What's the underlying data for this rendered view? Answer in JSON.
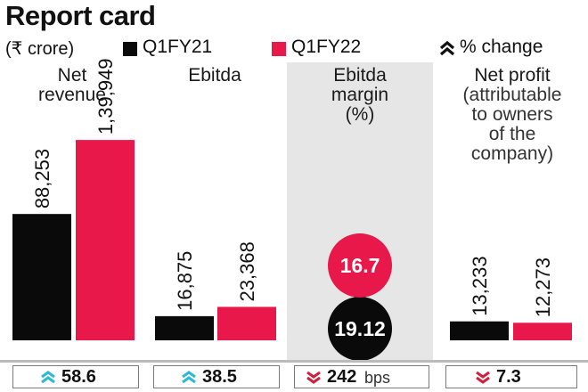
{
  "title": "Report card",
  "legend": {
    "unit": "(₹ crore)",
    "series_a": "Q1FY21",
    "series_b": "Q1FY22",
    "change": "% change"
  },
  "colors": {
    "series_a": "#0a0a0a",
    "series_b": "#e8184b",
    "up": "#2bbad0",
    "down": "#d21f3c",
    "panel_shade": "#e6e6e6"
  },
  "panels": [
    {
      "title_lines": [
        "Net",
        "revenue"
      ]
    },
    {
      "title_lines": [
        "Ebitda"
      ]
    },
    {
      "title_lines": [
        "Ebitda",
        "margin",
        "(%)"
      ]
    },
    {
      "title_lines": [
        "Net profit",
        "(attributable",
        "to owners",
        "of the",
        "company)"
      ]
    }
  ],
  "changes": [
    {
      "direction": "up",
      "icon": "double-chevron-up-icon",
      "value": "58.6",
      "unit": ""
    },
    {
      "direction": "up",
      "icon": "double-chevron-up-icon",
      "value": "38.5",
      "unit": ""
    },
    {
      "direction": "down",
      "icon": "double-chevron-down-icon",
      "value": "242",
      "unit": "bps"
    },
    {
      "direction": "down",
      "icon": "double-chevron-down-icon",
      "value": "7.3",
      "unit": ""
    }
  ],
  "chart_data": {
    "type": "bar",
    "title": "Report card",
    "unit": "(₹ crore)",
    "series_names": [
      "Q1FY21",
      "Q1FY22"
    ],
    "metrics": [
      {
        "name": "Net revenue",
        "values": [
          88253,
          139949
        ],
        "labels": [
          "88,253",
          "1,39,949"
        ],
        "change": "58.6"
      },
      {
        "name": "Ebitda",
        "values": [
          16875,
          23368
        ],
        "labels": [
          "16,875",
          "23,368"
        ],
        "change": "38.5"
      },
      {
        "name": "Ebitda margin (%)",
        "values": [
          19.12,
          16.7
        ],
        "labels": [
          "19.12",
          "16.7"
        ],
        "change": "242 bps"
      },
      {
        "name": "Net profit (attributable to owners of the company)",
        "values": [
          13233,
          12273
        ],
        "labels": [
          "13,233",
          "12,273"
        ],
        "change": "7.3"
      }
    ]
  }
}
